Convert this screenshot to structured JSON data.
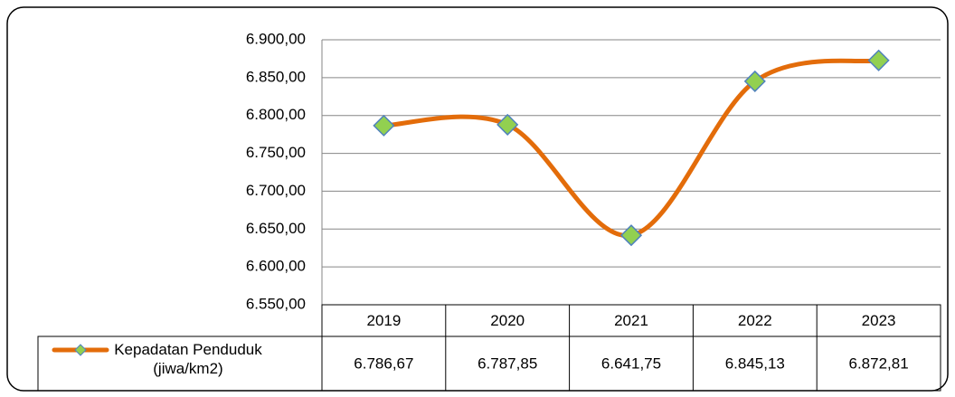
{
  "chart_data": {
    "type": "line",
    "categories": [
      "2019",
      "2020",
      "2021",
      "2022",
      "2023"
    ],
    "series": [
      {
        "name": "Kepadatan Penduduk (jiwa/km2)",
        "color": "#e36c0a",
        "marker_color": "#92d050",
        "marker_edge": "#4f81bd",
        "values": [
          6786.67,
          6787.85,
          6641.75,
          6845.13,
          6872.81
        ],
        "value_labels": [
          "6.786,67",
          "6.787,85",
          "6.641,75",
          "6.845,13",
          "6.872,81"
        ]
      }
    ],
    "ylim": [
      6550,
      6900
    ],
    "yticks": [
      {
        "value": 6550,
        "label": "6.550,00"
      },
      {
        "value": 6600,
        "label": "6.600,00"
      },
      {
        "value": 6650,
        "label": "6.650,00"
      },
      {
        "value": 6700,
        "label": "6.700,00"
      },
      {
        "value": 6750,
        "label": "6.750,00"
      },
      {
        "value": 6800,
        "label": "6.800,00"
      },
      {
        "value": 6850,
        "label": "6.850,00"
      },
      {
        "value": 6900,
        "label": "6.900,00"
      }
    ],
    "grid": true,
    "data_table": true
  }
}
